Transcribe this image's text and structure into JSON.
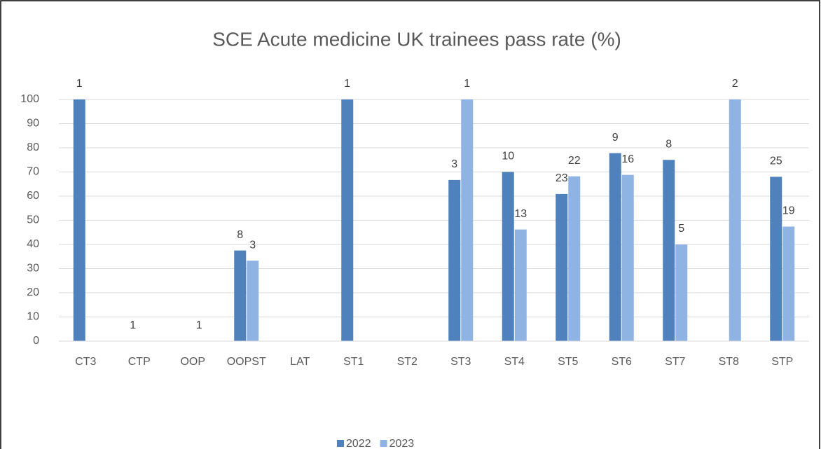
{
  "chart_data": {
    "type": "bar",
    "title": "SCE Acute medicine UK trainees pass rate (%)",
    "categories": [
      "CT3",
      "CTP",
      "OOP",
      "OOPST",
      "LAT",
      "ST1",
      "ST2",
      "ST3",
      "ST4",
      "ST5",
      "ST6",
      "ST7",
      "ST8",
      "STP"
    ],
    "series": [
      {
        "name": "2022",
        "color": "#4f81bd",
        "values": [
          100,
          0,
          null,
          37.5,
          null,
          100,
          null,
          66.7,
          70,
          60.9,
          77.8,
          75,
          null,
          68
        ],
        "counts": [
          1,
          1,
          null,
          8,
          null,
          1,
          null,
          3,
          10,
          23,
          9,
          8,
          null,
          25
        ]
      },
      {
        "name": "2023",
        "color": "#8fb4e3",
        "values": [
          null,
          null,
          0,
          33.3,
          null,
          null,
          null,
          100,
          46.2,
          68.2,
          68.8,
          40,
          100,
          47.4
        ],
        "counts": [
          null,
          null,
          1,
          3,
          null,
          null,
          null,
          1,
          13,
          22,
          16,
          5,
          2,
          19
        ]
      }
    ],
    "ylim": [
      0,
      100
    ],
    "yticks": [
      0,
      10,
      20,
      30,
      40,
      50,
      60,
      70,
      80,
      90,
      100
    ],
    "grid": true,
    "legend": "bottom"
  }
}
